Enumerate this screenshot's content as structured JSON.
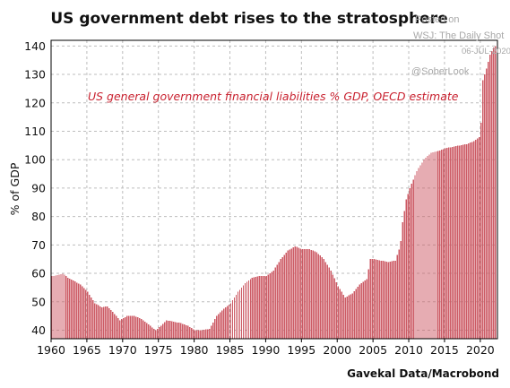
{
  "chart_data": {
    "type": "bar",
    "title": "US government debt rises to the stratosphere",
    "subtitle": "US general government financial liabilities % GDP, OECD estimate",
    "ylabel": "% of GDP",
    "xlabel": "",
    "source": "Gavekal Data/Macrobond",
    "bar_color": "#cc5a64",
    "subtitle_color": "#c8202e",
    "ylim": [
      37,
      142
    ],
    "yticks": [
      40,
      50,
      60,
      70,
      80,
      90,
      100,
      110,
      120,
      130,
      140
    ],
    "xlim": [
      1960.0,
      2022.4
    ],
    "xticks": [
      1960,
      1965,
      1970,
      1975,
      1980,
      1985,
      1990,
      1995,
      2000,
      2005,
      2010,
      2015,
      2020
    ],
    "grid": true,
    "frequency": "quarterly",
    "anchor_points": [
      [
        1960.0,
        59
      ],
      [
        1961.0,
        59.5
      ],
      [
        1961.6,
        60
      ],
      [
        1962.2,
        58.5
      ],
      [
        1963.0,
        57.5
      ],
      [
        1964.0,
        56
      ],
      [
        1965.0,
        53.5
      ],
      [
        1966.0,
        49.5
      ],
      [
        1967.0,
        48
      ],
      [
        1967.7,
        48.5
      ],
      [
        1968.5,
        46.5
      ],
      [
        1969.5,
        43.5
      ],
      [
        1970.5,
        45
      ],
      [
        1971.5,
        45
      ],
      [
        1972.5,
        44
      ],
      [
        1973.5,
        42
      ],
      [
        1974.5,
        40
      ],
      [
        1975.2,
        41.5
      ],
      [
        1976.0,
        43.5
      ],
      [
        1977.0,
        43
      ],
      [
        1978.0,
        42.5
      ],
      [
        1979.0,
        41.5
      ],
      [
        1980.0,
        40
      ],
      [
        1981.0,
        40
      ],
      [
        1982.0,
        40.5
      ],
      [
        1983.0,
        45
      ],
      [
        1984.0,
        47.5
      ],
      [
        1985.0,
        49.5
      ],
      [
        1986.0,
        53.5
      ],
      [
        1987.0,
        56.5
      ],
      [
        1988.0,
        58.5
      ],
      [
        1989.0,
        59
      ],
      [
        1990.0,
        59
      ],
      [
        1991.0,
        61
      ],
      [
        1992.0,
        65
      ],
      [
        1993.0,
        68
      ],
      [
        1994.0,
        69.5
      ],
      [
        1995.0,
        68.5
      ],
      [
        1996.0,
        68.5
      ],
      [
        1997.0,
        67.5
      ],
      [
        1998.0,
        65
      ],
      [
        1999.0,
        61
      ],
      [
        2000.0,
        55.5
      ],
      [
        2001.0,
        51.5
      ],
      [
        2002.0,
        53
      ],
      [
        2003.0,
        56
      ],
      [
        2004.0,
        58
      ],
      [
        2004.5,
        65
      ],
      [
        2005.0,
        65
      ],
      [
        2006.0,
        64.5
      ],
      [
        2007.0,
        64
      ],
      [
        2008.0,
        64.5
      ],
      [
        2008.7,
        70
      ],
      [
        2009.0,
        78
      ],
      [
        2009.5,
        86
      ],
      [
        2010.0,
        90
      ],
      [
        2011.0,
        96
      ],
      [
        2012.0,
        100
      ],
      [
        2013.0,
        102.5
      ],
      [
        2014.0,
        103
      ],
      [
        2015.0,
        104
      ],
      [
        2016.0,
        104.5
      ],
      [
        2017.0,
        105
      ],
      [
        2018.0,
        105.5
      ],
      [
        2019.0,
        106.5
      ],
      [
        2019.75,
        108
      ],
      [
        2020.0,
        113
      ],
      [
        2020.25,
        128
      ],
      [
        2020.75,
        132
      ],
      [
        2021.25,
        137
      ],
      [
        2021.75,
        139.5
      ],
      [
        2022.0,
        140
      ]
    ]
  },
  "watermark": {
    "line1": "Posted on",
    "line2": "WSJ: The Daily Shot",
    "date": "06-JUL-2020",
    "handle": "@SoberLook"
  }
}
